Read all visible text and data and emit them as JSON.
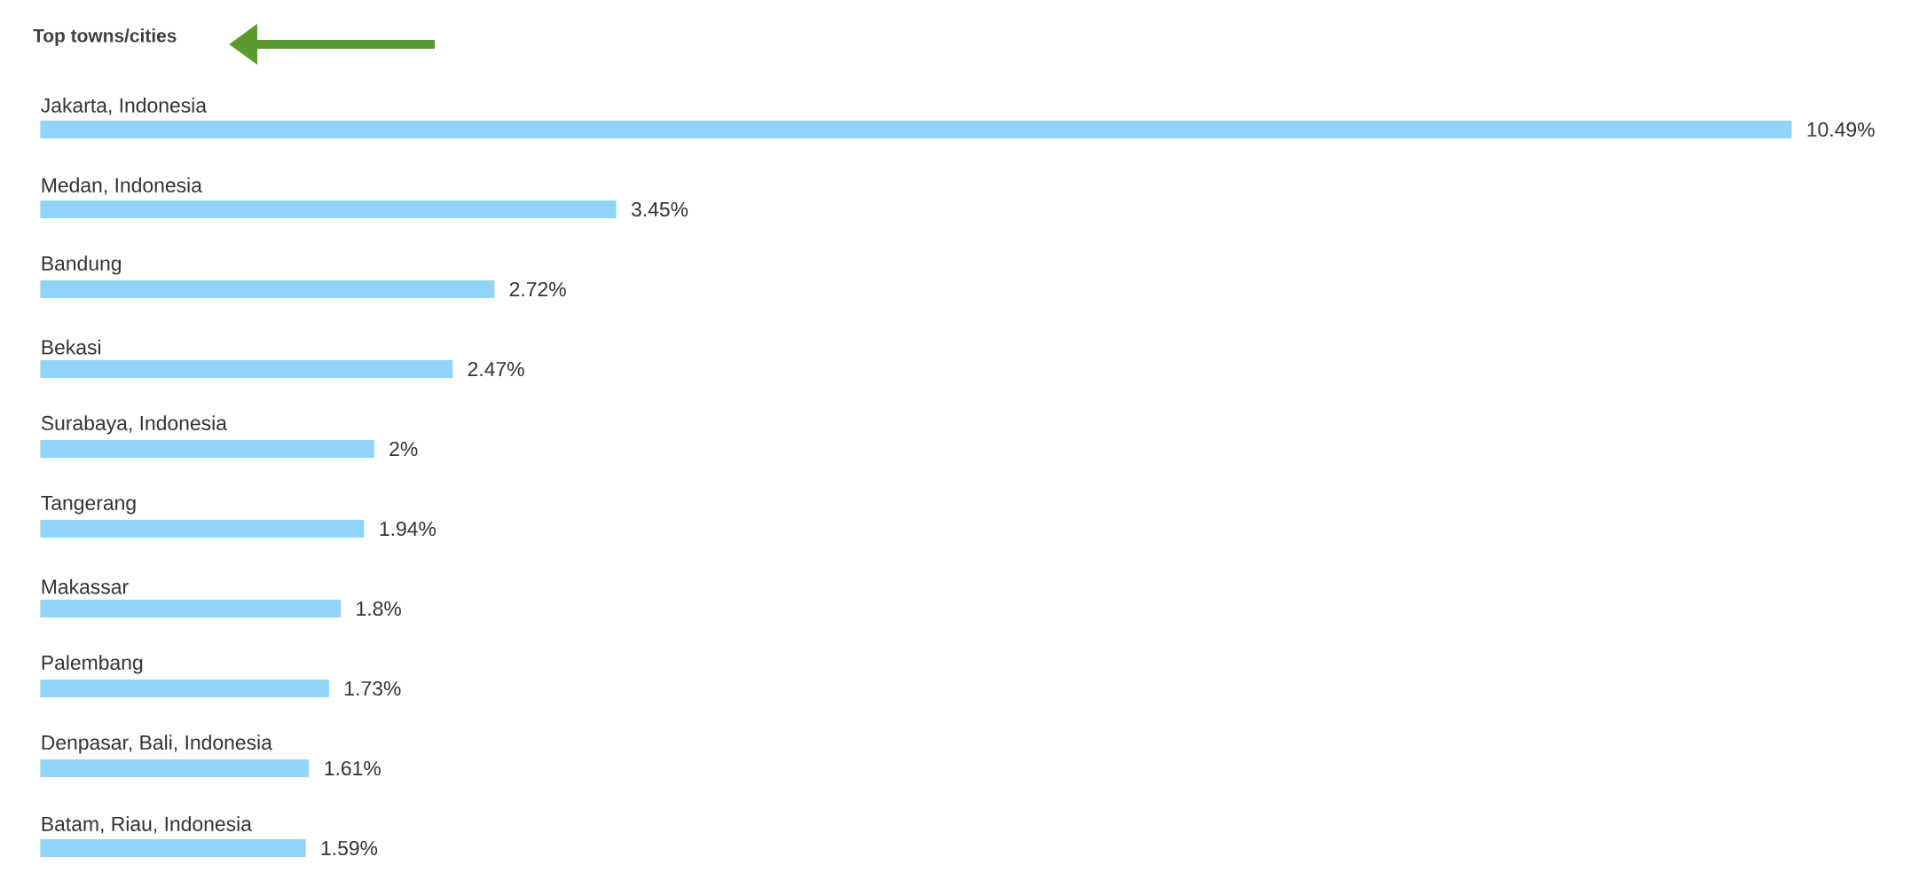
{
  "chart_data": {
    "type": "bar",
    "orientation": "horizontal",
    "title": "Top towns/cities",
    "categories": [
      "Jakarta, Indonesia",
      "Medan, Indonesia",
      "Bandung",
      "Bekasi",
      "Surabaya, Indonesia",
      "Tangerang",
      "Makassar",
      "Palembang",
      "Denpasar, Bali, Indonesia",
      "Batam, Riau, Indonesia"
    ],
    "values": [
      10.49,
      3.45,
      2.72,
      2.47,
      2,
      1.94,
      1.8,
      1.73,
      1.61,
      1.59
    ],
    "value_labels": [
      "10.49%",
      "3.45%",
      "2.72%",
      "2.47%",
      "2%",
      "1.94%",
      "1.8%",
      "1.73%",
      "1.61%",
      "1.59%"
    ],
    "color": "#90d4f7"
  }
}
